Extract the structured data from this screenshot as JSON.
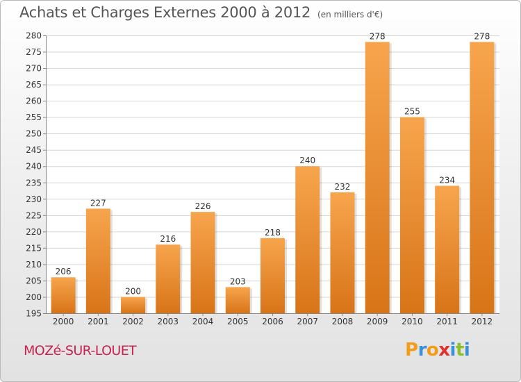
{
  "chart_data": {
    "type": "bar",
    "title": "Achats et Charges Externes 2000 à 2012",
    "subtitle": "(en milliers d'€)",
    "categories": [
      "2000",
      "2001",
      "2002",
      "2003",
      "2004",
      "2005",
      "2006",
      "2007",
      "2008",
      "2009",
      "2010",
      "2011",
      "2012"
    ],
    "values": [
      206,
      227,
      200,
      216,
      226,
      203,
      218,
      240,
      232,
      278,
      255,
      234,
      278
    ],
    "ylim": [
      195,
      280
    ],
    "ytick_step": 5,
    "xlabel": "",
    "ylabel": "",
    "grid": true,
    "bar_color_top": "#f7a54d",
    "bar_color_bottom": "#d87418"
  },
  "footer": {
    "commune": "MOZé-SUR-LOUET",
    "logo_letters": [
      "P",
      "r",
      "o",
      "x",
      "i",
      "t",
      "i"
    ],
    "logo_colors": [
      "#f39c1a",
      "#3b8fd6",
      "#f39c1a",
      "#e0302f",
      "#3b8fd6",
      "#8bbf2c",
      "#3b8fd6"
    ]
  }
}
